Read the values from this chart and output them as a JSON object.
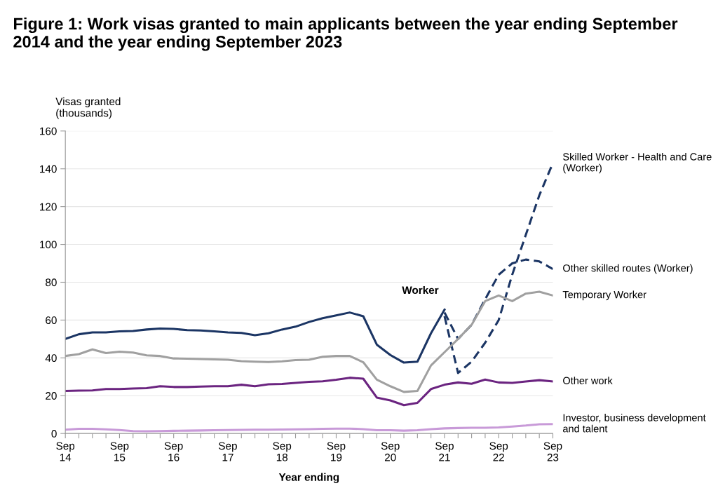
{
  "chart_data": {
    "type": "line",
    "title": "Figure 1: Work visas granted to main applicants between the year ending September 2014 and the year ending September 2023",
    "xlabel": "Year ending",
    "ylabel": "Visas granted\n(thousands)",
    "categories": [
      "Sep\n14",
      null,
      null,
      null,
      "Sep\n15",
      null,
      null,
      null,
      "Sep\n16",
      null,
      null,
      null,
      "Sep\n17",
      null,
      null,
      null,
      "Sep\n18",
      null,
      null,
      null,
      "Sep\n19",
      null,
      null,
      null,
      "Sep\n20",
      null,
      null,
      null,
      "Sep\n21",
      null,
      null,
      null,
      "Sep\n22",
      null,
      null,
      null,
      "Sep\n23"
    ],
    "ylim": [
      0,
      160
    ],
    "yticks": [
      0,
      20,
      40,
      60,
      80,
      100,
      120,
      140,
      160
    ],
    "grid": "y",
    "marker": "none",
    "series": [
      {
        "name": "Worker",
        "color": "#1b3564",
        "line_style": "solid",
        "values": [
          50,
          52.5,
          53.5,
          53.5,
          54,
          54.2,
          55,
          55.5,
          55.3,
          54.7,
          54.5,
          54,
          53.5,
          53.2,
          52,
          53,
          55,
          56.5,
          59,
          61,
          62.5,
          64,
          62,
          47,
          41.5,
          37.5,
          38,
          53,
          65.5,
          null,
          null,
          null,
          null,
          null,
          null,
          null,
          null
        ]
      },
      {
        "name": "Skilled Worker - Health and Care (Worker)",
        "color": "#1b3564",
        "line_style": "dashed",
        "values": [
          null,
          null,
          null,
          null,
          null,
          null,
          null,
          null,
          null,
          null,
          null,
          null,
          null,
          null,
          null,
          null,
          null,
          null,
          null,
          null,
          null,
          null,
          null,
          null,
          null,
          null,
          null,
          null,
          62,
          32,
          38,
          48,
          60,
          84,
          105,
          126,
          143
        ]
      },
      {
        "name": "Other skilled routes (Worker)",
        "color": "#1b3564",
        "line_style": "dashed",
        "values": [
          null,
          null,
          null,
          null,
          null,
          null,
          null,
          null,
          null,
          null,
          null,
          null,
          null,
          null,
          null,
          null,
          null,
          null,
          null,
          null,
          null,
          null,
          null,
          null,
          null,
          null,
          null,
          null,
          64,
          50,
          57.5,
          71,
          84,
          90,
          92,
          91,
          87
        ]
      },
      {
        "name": "Temporary Worker",
        "color": "#a0a0a0",
        "line_style": "solid",
        "values": [
          41,
          42,
          44.5,
          42.5,
          43.3,
          42.8,
          41.3,
          41,
          39.7,
          39.6,
          39.4,
          39.2,
          39,
          38.3,
          38,
          37.8,
          38.2,
          38.8,
          39,
          40.6,
          41,
          41,
          37.7,
          28.5,
          25,
          22,
          22.5,
          36,
          43,
          50,
          57.5,
          70,
          73,
          70,
          74,
          75,
          73
        ]
      },
      {
        "name": "Other work",
        "color": "#6b2480",
        "line_style": "solid",
        "values": [
          22.5,
          22.7,
          22.8,
          23.5,
          23.5,
          23.8,
          24,
          25,
          24.6,
          24.6,
          24.8,
          25,
          25,
          25.8,
          25,
          26,
          26.2,
          26.8,
          27.3,
          27.6,
          28.4,
          29.5,
          29,
          19,
          17.5,
          15,
          16.2,
          23.5,
          25.8,
          27,
          26.3,
          28.5,
          27,
          26.8,
          27.5,
          28.2,
          27.5
        ]
      },
      {
        "name": "Investor, business development and talent",
        "color": "#c89ad8",
        "line_style": "solid",
        "values": [
          2,
          2.5,
          2.5,
          2.2,
          1.8,
          1.3,
          1.2,
          1.3,
          1.4,
          1.5,
          1.6,
          1.7,
          1.8,
          1.9,
          2,
          2,
          2.1,
          2.2,
          2.3,
          2.5,
          2.6,
          2.6,
          2.3,
          1.7,
          1.7,
          1.5,
          1.7,
          2.3,
          2.7,
          2.9,
          3,
          3,
          3.2,
          3.7,
          4.2,
          4.9,
          5
        ]
      }
    ]
  }
}
